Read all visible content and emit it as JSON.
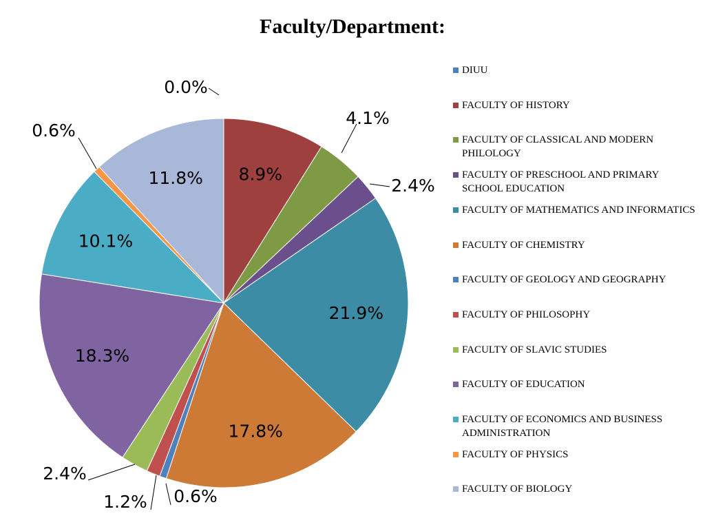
{
  "chart_data": {
    "type": "pie",
    "title": "Faculty/Department:",
    "legend_position": "right",
    "slices": [
      {
        "name": "DIUU",
        "value": 0.0,
        "label": "0.0%",
        "color": "#4f81bd"
      },
      {
        "name": "FACULTY OF HISTORY",
        "value": 8.9,
        "label": "8.9%",
        "color": "#9e413e"
      },
      {
        "name": "FACULTY OF CLASSICAL AND MODERN PHILOLOGY",
        "value": 4.1,
        "label": "4.1%",
        "color": "#7e9a45"
      },
      {
        "name": "FACULTY OF PRESCHOOL AND PRIMARY SCHOOL EDUCATION",
        "value": 2.4,
        "label": "2.4%",
        "color": "#6b4f8c"
      },
      {
        "name": "FACULTY OF MATHEMATICS AND INFORMATICS",
        "value": 21.9,
        "label": "21.9%",
        "color": "#3b8ca4"
      },
      {
        "name": "FACULTY OF CHEMISTRY",
        "value": 17.8,
        "label": "17.8%",
        "color": "#cd7a37"
      },
      {
        "name": "FACULTY OF GEOLOGY AND GEOGRAPHY",
        "value": 0.6,
        "label": "0.6%",
        "color": "#4f81bd"
      },
      {
        "name": "FACULTY OF PHILOSOPHY",
        "value": 1.2,
        "label": "1.2%",
        "color": "#c0504d"
      },
      {
        "name": "FACULTY OF SLAVIC STUDIES",
        "value": 2.4,
        "label": "2.4%",
        "color": "#9bbb59"
      },
      {
        "name": "FACULTY OF EDUCATION",
        "value": 18.3,
        "label": "18.3%",
        "color": "#8064a2"
      },
      {
        "name": "FACULTY OF ECONOMICS AND BUSINESS ADMINISTRATION",
        "value": 10.1,
        "label": "10.1%",
        "color": "#4bacc6"
      },
      {
        "name": "FACULTY OF PHYSICS",
        "value": 0.6,
        "label": "0.6%",
        "color": "#f79646"
      },
      {
        "name": "FACULTY OF BIOLOGY",
        "value": 11.8,
        "label": "11.8%",
        "color": "#a9b8d8"
      }
    ]
  }
}
